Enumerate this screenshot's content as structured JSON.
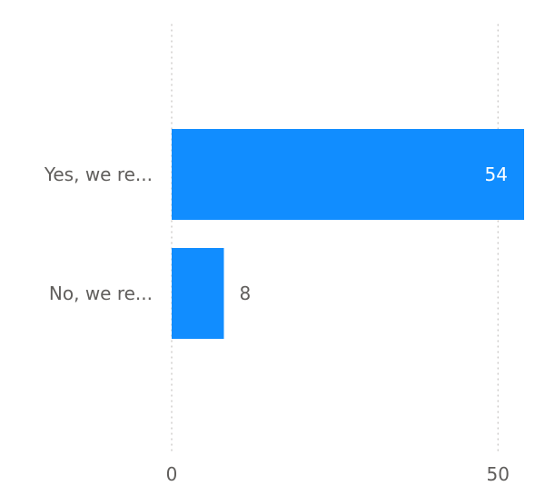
{
  "chart_data": {
    "type": "bar",
    "orientation": "horizontal",
    "categories": [
      "Yes, we re...",
      "No, we re..."
    ],
    "values": [
      54,
      8
    ],
    "data_labels": [
      "54",
      "8"
    ],
    "x_ticks": [
      0,
      50
    ],
    "x_tick_labels": [
      "0",
      "50"
    ],
    "xlim": [
      0,
      54
    ],
    "grid": "vertical-dotted",
    "title": "",
    "xlabel": "",
    "ylabel": "",
    "colors": {
      "bar": "#118DFF",
      "label_inside": "#ffffff",
      "label_outside": "#605e5c",
      "axis_text": "#605e5c",
      "grid": "#c8c6c4"
    }
  }
}
